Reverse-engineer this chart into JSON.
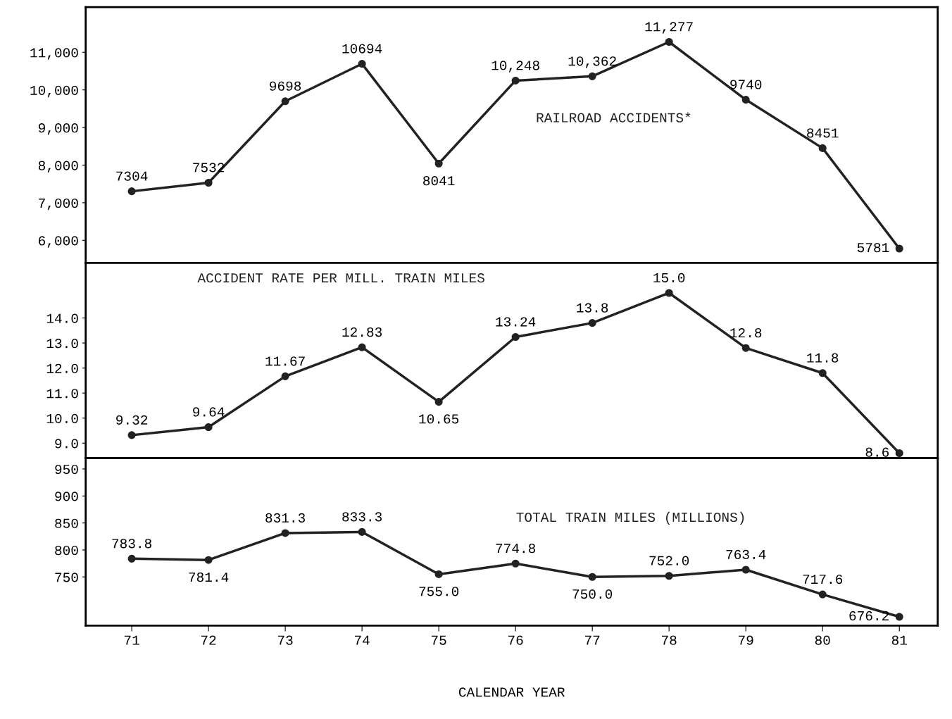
{
  "chart_data": [
    {
      "type": "line",
      "categories": [
        "71",
        "72",
        "73",
        "74",
        "75",
        "76",
        "77",
        "78",
        "79",
        "80",
        "81"
      ],
      "series": [
        {
          "name": "RAILROAD ACCIDENTS*",
          "color": "#222222",
          "values": [
            7304,
            7532,
            9698,
            10694,
            8041,
            10248,
            10362,
            11277,
            9740,
            8451,
            5781
          ],
          "value_labels": [
            "7304",
            "7532",
            "9698",
            "10694",
            "8041",
            "10,248",
            "10,362",
            "11,277",
            "9740",
            "8451",
            "5781"
          ]
        }
      ],
      "ylim": [
        5400,
        12200
      ],
      "yticks": [
        {
          "value": 6000,
          "label": "6,000"
        },
        {
          "value": 7000,
          "label": "7,000"
        },
        {
          "value": 8000,
          "label": "8,000"
        },
        {
          "value": 9000,
          "label": "9,000"
        },
        {
          "value": 10000,
          "label": "10,000"
        },
        {
          "value": 11000,
          "label": "11,000"
        }
      ],
      "tick_labels": "y",
      "marker": "circle",
      "line_style": "solid",
      "grid": false,
      "legend": false
    },
    {
      "type": "line",
      "categories": [
        "71",
        "72",
        "73",
        "74",
        "75",
        "76",
        "77",
        "78",
        "79",
        "80",
        "81"
      ],
      "series": [
        {
          "name": "ACCIDENT RATE PER MILL. TRAIN MILES",
          "color": "#222222",
          "values": [
            9.32,
            9.64,
            11.67,
            12.83,
            10.65,
            13.24,
            13.8,
            15.0,
            12.8,
            11.8,
            8.6
          ],
          "value_labels": [
            "9.32",
            "9.64",
            "11.67",
            "12.83",
            "10.65",
            "13.24",
            "13.8",
            "15.0",
            "12.8",
            "11.8",
            "8.6"
          ]
        }
      ],
      "ylim": [
        8.4,
        16.2
      ],
      "yticks": [
        {
          "value": 9,
          "label": "9.0"
        },
        {
          "value": 10,
          "label": "10.0"
        },
        {
          "value": 11,
          "label": "11.0"
        },
        {
          "value": 12,
          "label": "12.0"
        },
        {
          "value": 13,
          "label": "13.0"
        },
        {
          "value": 14,
          "label": "14.0"
        }
      ],
      "tick_labels": "y",
      "marker": "circle",
      "line_style": "solid",
      "grid": false,
      "legend": false
    },
    {
      "type": "line",
      "categories": [
        "71",
        "72",
        "73",
        "74",
        "75",
        "76",
        "77",
        "78",
        "79",
        "80",
        "81"
      ],
      "series": [
        {
          "name": "TOTAL TRAIN MILES (MILLIONS)",
          "color": "#222222",
          "values": [
            783.8,
            781.4,
            831.3,
            833.3,
            755.0,
            774.8,
            750.0,
            752.0,
            763.4,
            717.6,
            676.2
          ],
          "value_labels": [
            "783.8",
            "781.4",
            "831.3",
            "833.3",
            "755.0",
            "774.8",
            "750.0",
            "752.0",
            "763.4",
            "717.6",
            "676.2"
          ]
        }
      ],
      "ylim": [
        660,
        970
      ],
      "yticks": [
        750,
        800,
        850,
        900,
        950
      ],
      "xlabel": "CALENDAR YEAR",
      "marker": "circle",
      "line_style": "solid",
      "grid": false,
      "legend": false
    }
  ]
}
